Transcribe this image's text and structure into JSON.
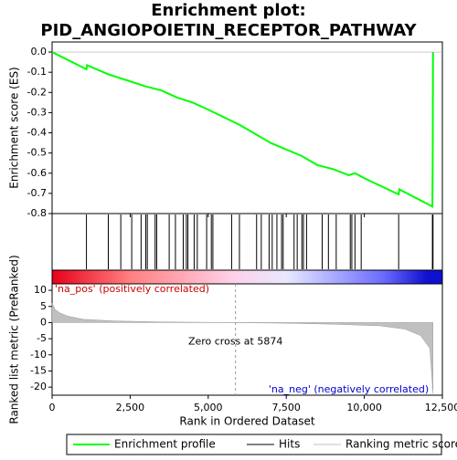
{
  "title": "Enrichment plot:",
  "subtitle": "PID_ANGIOPOIETIN_RECEPTOR_PATHWAY",
  "chart_data": [
    {
      "type": "line",
      "ylabel": "Enrichment score (ES)",
      "xlim": [
        0,
        12500
      ],
      "ylim": [
        -0.8,
        0.05
      ],
      "yticks": [
        {
          "value": 0,
          "label": "0.0"
        },
        -0.1,
        -0.2,
        -0.3,
        -0.4,
        -0.5,
        -0.6,
        -0.7,
        -0.8
      ],
      "xticks": [
        0,
        2500,
        5000,
        7500,
        10000,
        12500
      ],
      "series": [
        {
          "name": "Enrichment profile",
          "color": "#00ff00",
          "x": [
            0,
            1100,
            1120,
            1800,
            2500,
            3000,
            3500,
            4000,
            4500,
            5000,
            6000,
            7000,
            8000,
            8500,
            9000,
            9500,
            9700,
            10000,
            11100,
            11120,
            12180,
            12190,
            12200
          ],
          "values": [
            0,
            -0.085,
            -0.065,
            -0.11,
            -0.145,
            -0.17,
            -0.19,
            -0.225,
            -0.25,
            -0.285,
            -0.36,
            -0.45,
            -0.515,
            -0.56,
            -0.58,
            -0.61,
            -0.6,
            -0.625,
            -0.705,
            -0.68,
            -0.765,
            -0.545,
            0
          ]
        }
      ]
    },
    {
      "type": "rug",
      "xlim": [
        0,
        12500
      ],
      "series": [
        {
          "name": "Hits",
          "color": "#000000",
          "x": [
            1100,
            1800,
            2200,
            2550,
            2850,
            3000,
            3050,
            3300,
            3350,
            3750,
            3950,
            4200,
            4300,
            4350,
            4550,
            4650,
            4950,
            5100,
            5150,
            5750,
            6000,
            6550,
            6700,
            6950,
            7050,
            7200,
            7350,
            7400,
            7750,
            7850,
            8000,
            8050,
            8150,
            8650,
            8850,
            9100,
            9550,
            9600,
            9700,
            9900,
            11100,
            12180,
            12200
          ]
        }
      ]
    },
    {
      "type": "area",
      "xlabel": "Rank in Ordered Dataset",
      "ylabel": "Ranked list metric (PreRanked)",
      "xlim": [
        0,
        12500
      ],
      "ylim": [
        -22.5,
        12
      ],
      "xticks": [
        0,
        {
          "value": 2500,
          "label": "2,500"
        },
        {
          "value": 5000,
          "label": "5,000"
        },
        {
          "value": 7500,
          "label": "7,500"
        },
        {
          "value": 10000,
          "label": "10,000"
        },
        {
          "value": 12500,
          "label": "12,500"
        }
      ],
      "yticks": [
        10,
        5,
        0,
        -5,
        -10,
        -15,
        -20
      ],
      "zero_cross": 5874,
      "annotations": [
        "'na_pos' (positively correlated)",
        "Zero cross at 5874",
        "'na_neg' (negatively correlated)"
      ],
      "series": [
        {
          "name": "Ranking metric scores",
          "color": "#c0c0c0",
          "x": [
            0,
            100,
            250,
            500,
            1000,
            2000,
            3500,
            5874,
            7500,
            9000,
            10500,
            11300,
            11800,
            12100,
            12200
          ],
          "values": [
            6,
            4,
            3,
            2,
            1,
            0.5,
            0.2,
            0,
            -0.2,
            -0.5,
            -1,
            -2,
            -4,
            -8,
            -22
          ]
        }
      ]
    }
  ]
}
